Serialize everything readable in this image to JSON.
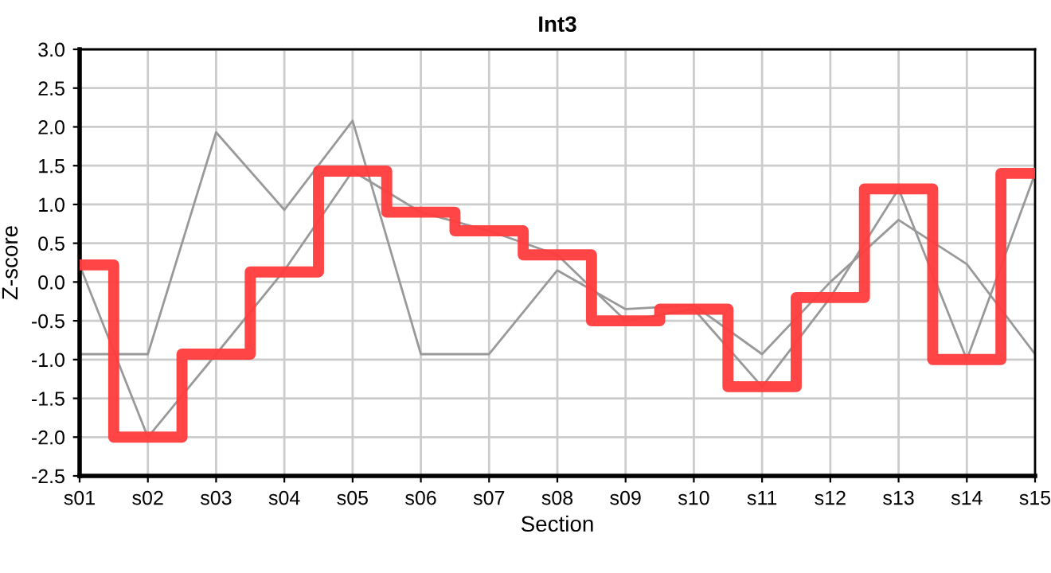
{
  "chart_data": {
    "type": "line",
    "title": "Int3",
    "xlabel": "Section",
    "ylabel": "Z-score",
    "categories": [
      "s01",
      "s02",
      "s03",
      "s04",
      "s05",
      "s06",
      "s07",
      "s08",
      "s09",
      "s10",
      "s11",
      "s12",
      "s13",
      "s14",
      "s15"
    ],
    "series": [
      {
        "color": "#999999",
        "values": [
          -0.93,
          -0.93,
          1.93,
          0.93,
          2.08,
          -0.93,
          -0.93,
          0.15,
          -0.35,
          -0.3,
          -0.93,
          0.0,
          0.8,
          0.23,
          -0.93
        ]
      },
      {
        "color": "#999999",
        "values": [
          0.22,
          -2.0,
          -0.93,
          0.15,
          1.43,
          0.9,
          0.66,
          0.35,
          -0.5,
          -0.35,
          -1.35,
          -0.2,
          1.2,
          -1.0,
          1.4
        ]
      },
      {
        "type": "step",
        "color": "#ff3b3b",
        "values": [
          0.22,
          -2.0,
          -0.93,
          0.13,
          1.43,
          0.9,
          0.66,
          0.35,
          -0.5,
          -0.35,
          -1.35,
          -0.2,
          1.2,
          -1.0,
          1.4
        ]
      }
    ],
    "ylim": [
      -2.5,
      3.0
    ],
    "yticks": [
      {
        "value": -2.5,
        "label": "-2.5"
      },
      {
        "value": -2.0,
        "label": "-2.0"
      },
      {
        "value": -1.5,
        "label": "-1.5"
      },
      {
        "value": -1.0,
        "label": "-1.0"
      },
      {
        "value": -0.5,
        "label": "-0.5"
      },
      {
        "value": 0.0,
        "label": "0.0"
      },
      {
        "value": 0.5,
        "label": "0.5"
      },
      {
        "value": 1.0,
        "label": "1.0"
      },
      {
        "value": 1.5,
        "label": "1.5"
      },
      {
        "value": 2.0,
        "label": "2.0"
      },
      {
        "value": 2.5,
        "label": "2.5"
      },
      {
        "value": 3.0,
        "label": "3.0"
      }
    ],
    "grid": true,
    "legend": false
  }
}
